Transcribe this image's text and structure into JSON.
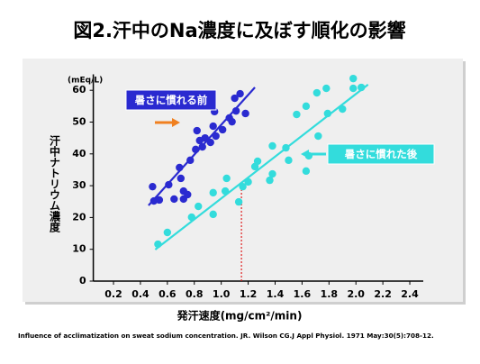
{
  "chart_data": {
    "type": "scatter",
    "title": "図2.汗中のNa濃度に及ぼす順化の影響",
    "x_label": "発汗速度(mg/cm²/min)",
    "y_label": "汗中ナトリウム濃度",
    "y_unit": "(mEq/L)",
    "footnote": "Influence of acclimatization on sweat sodium concentration. JR. Wilson CG.J Appl Physiol. 1971 May:30(5):708-12.",
    "xlim": [
      0.05,
      2.5
    ],
    "ylim": [
      0,
      65
    ],
    "xticks": [
      0.2,
      0.4,
      0.6,
      0.8,
      {
        "value": 1,
        "label": "1.0"
      },
      1.2,
      1.4,
      1.6,
      1.8,
      {
        "value": 2,
        "label": "2.0"
      },
      2.2,
      2.4
    ],
    "yticks": [
      0,
      10,
      20,
      30,
      40,
      50,
      60
    ],
    "series": [
      {
        "name": "暑さに慣れる前",
        "color": "#2a2ad0",
        "x": [
          0.5,
          0.49,
          0.54,
          0.61,
          0.65,
          0.69,
          0.7,
          0.72,
          0.77,
          0.72,
          0.75,
          0.81,
          0.84,
          0.86,
          0.88,
          0.82,
          0.92,
          0.94,
          0.96,
          0.95,
          1.01,
          1.06,
          1.08,
          1.1,
          1.14,
          1.18,
          1.11
        ],
        "values": [
          25.2,
          29.7,
          25.5,
          30.3,
          25.8,
          35.7,
          32.3,
          25.8,
          38.0,
          28.3,
          27.2,
          41.4,
          44.2,
          42.2,
          45.0,
          47.3,
          43.6,
          48.7,
          45.6,
          53.3,
          47.6,
          51.3,
          50.1,
          57.5,
          58.9,
          52.7,
          53.5
        ],
        "trend": {
          "x": [
            0.46,
            1.25
          ],
          "y": [
            23.8,
            60.9
          ]
        }
      },
      {
        "name": "暑さに慣れた後",
        "color": "#33dcdc",
        "x": [
          0.53,
          0.6,
          0.78,
          0.83,
          0.94,
          0.94,
          1.03,
          1.04,
          1.13,
          1.16,
          1.2,
          1.25,
          1.27,
          1.36,
          1.38,
          1.38,
          1.5,
          1.48,
          1.63,
          1.65,
          1.56,
          1.63,
          1.71,
          1.72,
          1.78,
          1.79,
          1.98,
          1.98,
          2.04,
          1.9
        ],
        "values": [
          11.6,
          15.3,
          20.1,
          23.5,
          21.0,
          27.8,
          28.3,
          32.3,
          24.9,
          29.7,
          31.2,
          36.0,
          37.7,
          31.7,
          33.7,
          42.5,
          38.0,
          41.9,
          34.6,
          39.4,
          52.4,
          55.0,
          59.2,
          45.6,
          60.6,
          52.7,
          63.7,
          60.6,
          60.9,
          54.1
        ],
        "trend": {
          "x": [
            0.51,
            2.09
          ],
          "y": [
            9.9,
            61.8
          ]
        }
      }
    ],
    "reference_line": {
      "x": 1.15,
      "y": [
        0,
        30
      ],
      "color": "#e02020"
    }
  }
}
